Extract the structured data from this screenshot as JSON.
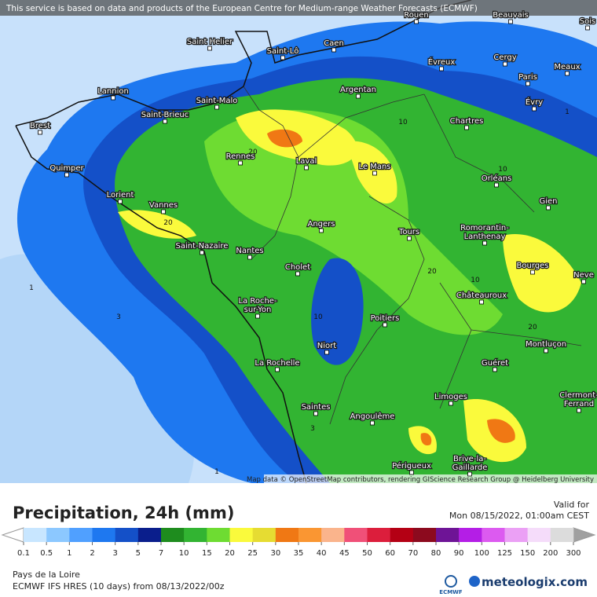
{
  "header": {
    "notice": "This service is based on data and products of the European Centre for Medium-range Weather Forecasts (ECMWF)"
  },
  "map": {
    "attribution": "Map data © OpenStreetMap contributors, rendering GIScience Research Group @ Heidelberg University",
    "cities": [
      {
        "lines": [
          "Rouen"
        ]
      },
      {
        "lines": [
          "Beauvais"
        ]
      },
      {
        "lines": [
          "Sois"
        ]
      },
      {
        "lines": [
          "Saint Helier"
        ]
      },
      {
        "lines": [
          "Saint-Lô"
        ]
      },
      {
        "lines": [
          "Caen"
        ]
      },
      {
        "lines": [
          "Évreux"
        ]
      },
      {
        "lines": [
          "Cergy"
        ]
      },
      {
        "lines": [
          "Meaux"
        ]
      },
      {
        "lines": [
          "Paris"
        ]
      },
      {
        "lines": [
          "Lannion"
        ]
      },
      {
        "lines": [
          "Saint-Malo"
        ]
      },
      {
        "lines": [
          "Argentan"
        ]
      },
      {
        "lines": [
          "Évry"
        ]
      },
      {
        "lines": [
          "Brest"
        ]
      },
      {
        "lines": [
          "Saint-Brieuc"
        ]
      },
      {
        "lines": [
          "Chartres"
        ]
      },
      {
        "lines": [
          "Quimper"
        ]
      },
      {
        "lines": [
          "Rennes"
        ]
      },
      {
        "lines": [
          "Laval"
        ]
      },
      {
        "lines": [
          "Le Mans"
        ]
      },
      {
        "lines": [
          "Orléans"
        ]
      },
      {
        "lines": [
          "Lorient"
        ]
      },
      {
        "lines": [
          "Vannes"
        ]
      },
      {
        "lines": [
          "Gien"
        ]
      },
      {
        "lines": [
          "Angers"
        ]
      },
      {
        "lines": [
          "Tours"
        ]
      },
      {
        "lines": [
          "Romorantin-",
          "Lanthenay"
        ]
      },
      {
        "lines": [
          "Saint-Nazaire"
        ]
      },
      {
        "lines": [
          "Nantes"
        ]
      },
      {
        "lines": [
          "Cholet"
        ]
      },
      {
        "lines": [
          "Bourges"
        ]
      },
      {
        "lines": [
          "Neve"
        ]
      },
      {
        "lines": [
          "La Roche-",
          "sur-Yon"
        ]
      },
      {
        "lines": [
          "Châteauroux"
        ]
      },
      {
        "lines": [
          "Poitiers"
        ]
      },
      {
        "lines": [
          "Niort"
        ]
      },
      {
        "lines": [
          "Montluçon"
        ]
      },
      {
        "lines": [
          "La Rochelle"
        ]
      },
      {
        "lines": [
          "Guéret"
        ]
      },
      {
        "lines": [
          "Clermont-",
          "Ferrand"
        ]
      },
      {
        "lines": [
          "Limoges"
        ]
      },
      {
        "lines": [
          "Saintes"
        ]
      },
      {
        "lines": [
          "Angoulême"
        ]
      },
      {
        "lines": [
          "Périgueux"
        ]
      },
      {
        "lines": [
          "Brive-la-",
          "Gaillarde"
        ]
      }
    ],
    "contour_labels": [
      10,
      20,
      10,
      20,
      1,
      20,
      10,
      3,
      10,
      20,
      3,
      1,
      1
    ]
  },
  "legend": {
    "title": "Precipitation, 24h (mm)",
    "valid_label": "Valid for",
    "valid_time": "Mon 08/15/2022, 01:00am CEST",
    "ticks": [
      0.1,
      0.5,
      1,
      2,
      3,
      5,
      7,
      10,
      15,
      20,
      25,
      30,
      35,
      40,
      45,
      50,
      60,
      70,
      80,
      90,
      100,
      125,
      150,
      200,
      300
    ],
    "colors": [
      "#c8e6ff",
      "#8cc8ff",
      "#50a0ff",
      "#1e78f0",
      "#1450c8",
      "#0a1e8c",
      "#1e8c1e",
      "#32b432",
      "#6edc32",
      "#fafa3c",
      "#e6dc32",
      "#f07814",
      "#fa9632",
      "#fab48c",
      "#f05078",
      "#dc1e3c",
      "#b40014",
      "#8c0a1e",
      "#6e1496",
      "#b41ee6",
      "#dc5af0",
      "#eba0f5",
      "#f5dcfa",
      "#dcdcdc"
    ]
  },
  "footer": {
    "region": "Pays de la Loire",
    "model": "ECMWF IFS HRES (10 days) from 08/13/2022/00z",
    "ecmwf_logo": "ECMWF",
    "brand": "meteologix.com"
  }
}
